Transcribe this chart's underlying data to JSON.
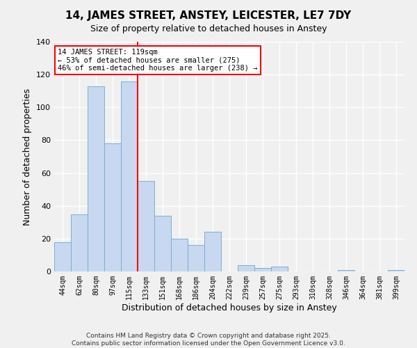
{
  "title": "14, JAMES STREET, ANSTEY, LEICESTER, LE7 7DY",
  "subtitle": "Size of property relative to detached houses in Anstey",
  "xlabel": "Distribution of detached houses by size in Anstey",
  "ylabel": "Number of detached properties",
  "bin_labels": [
    "44sqm",
    "62sqm",
    "80sqm",
    "97sqm",
    "115sqm",
    "133sqm",
    "151sqm",
    "168sqm",
    "186sqm",
    "204sqm",
    "222sqm",
    "239sqm",
    "257sqm",
    "275sqm",
    "293sqm",
    "310sqm",
    "328sqm",
    "346sqm",
    "364sqm",
    "381sqm",
    "399sqm"
  ],
  "bar_heights": [
    18,
    35,
    113,
    78,
    116,
    55,
    34,
    20,
    16,
    24,
    0,
    4,
    2,
    3,
    0,
    0,
    0,
    1,
    0,
    0,
    1
  ],
  "bar_color": "#c8d8f0",
  "bar_edge_color": "#7bafd4",
  "vline_x_index": 4,
  "vline_color": "red",
  "ylim": [
    0,
    140
  ],
  "annotation_text": "14 JAMES STREET: 119sqm\n← 53% of detached houses are smaller (275)\n46% of semi-detached houses are larger (238) →",
  "annotation_box_color": "#ffffff",
  "annotation_box_edge": "red",
  "footer_line1": "Contains HM Land Registry data © Crown copyright and database right 2025.",
  "footer_line2": "Contains public sector information licensed under the Open Government Licence v3.0.",
  "background_color": "#f0f0f0",
  "plot_bg_color": "#f0f0f0",
  "grid_color": "#ffffff",
  "yticks": [
    0,
    20,
    40,
    60,
    80,
    100,
    120,
    140
  ]
}
